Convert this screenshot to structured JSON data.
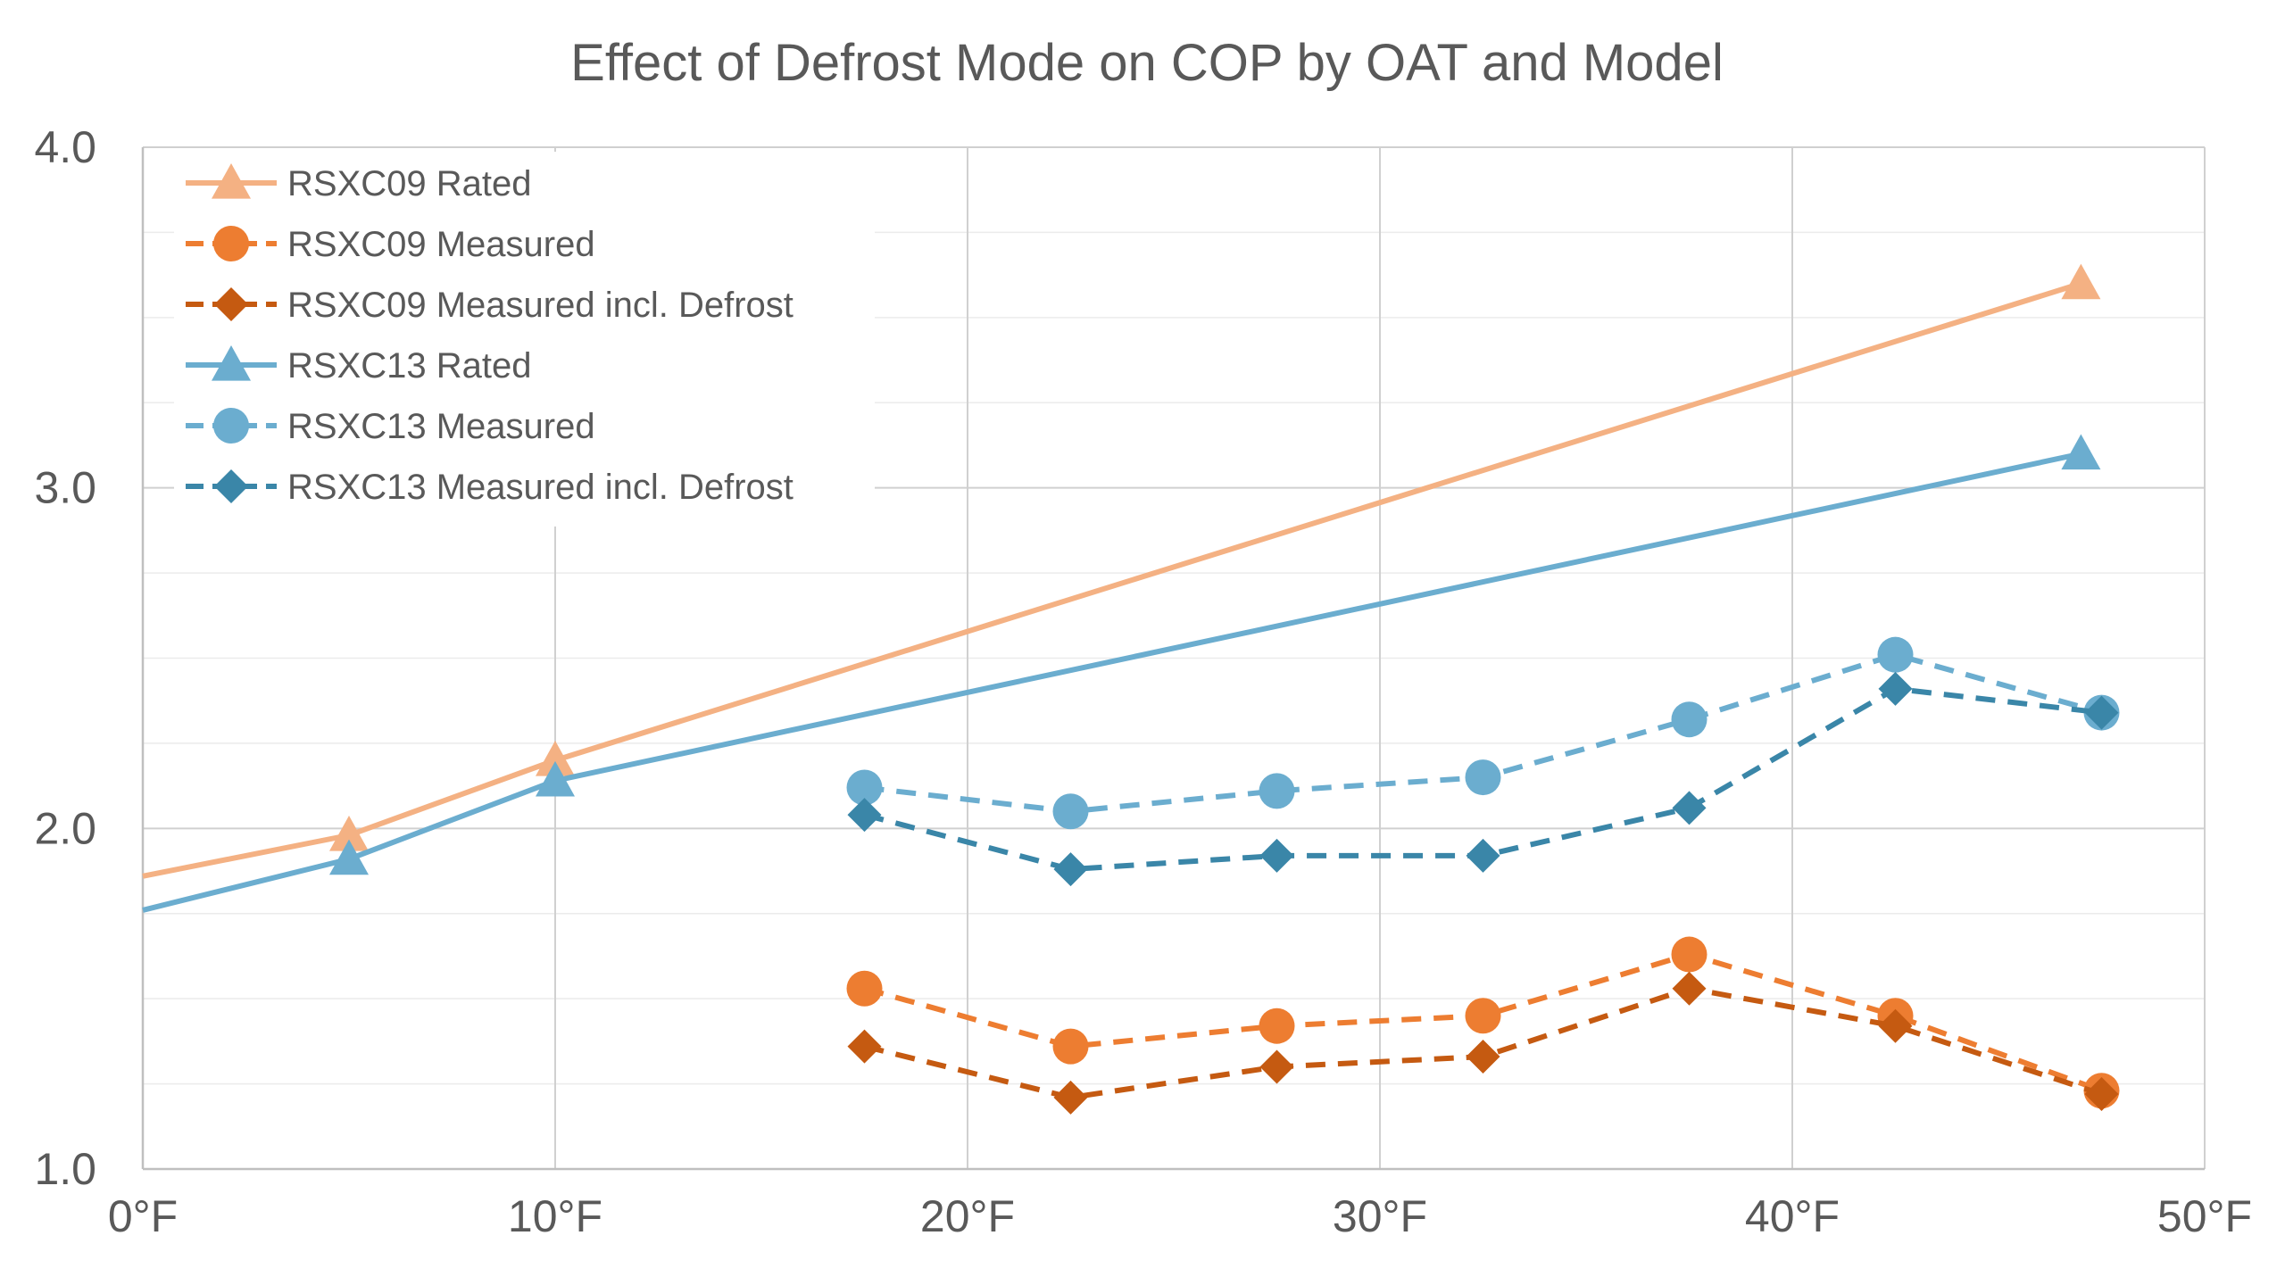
{
  "chart_data": {
    "type": "line",
    "title": "Effect of Defrost Mode on COP by OAT and Model",
    "xlabel": "",
    "ylabel": "",
    "xlim": [
      0,
      50
    ],
    "ylim": [
      1.0,
      4.0
    ],
    "x_ticks": [
      "0°F",
      "10°F",
      "20°F",
      "30°F",
      "40°F",
      "50°F"
    ],
    "y_ticks": [
      "1.0",
      "2.0",
      "3.0",
      "4.0"
    ],
    "grid": true,
    "legend_position": "top-left",
    "series": [
      {
        "name": "RSXC09 Rated",
        "color": "#F4B183",
        "dash": "solid",
        "marker": "triangle",
        "line_points": [
          [
            0,
            1.86
          ],
          [
            5,
            1.98
          ],
          [
            10,
            2.2
          ],
          [
            47,
            3.6
          ]
        ],
        "marker_points": [
          [
            5,
            1.98
          ],
          [
            10,
            2.2
          ],
          [
            47,
            3.6
          ]
        ]
      },
      {
        "name": "RSXC09 Measured",
        "color": "#ED7D31",
        "dash": "dashed",
        "marker": "circle",
        "line_points": [
          [
            17.5,
            1.53
          ],
          [
            22.5,
            1.36
          ],
          [
            27.5,
            1.42
          ],
          [
            32.5,
            1.45
          ],
          [
            37.5,
            1.63
          ],
          [
            42.5,
            1.45
          ],
          [
            47.5,
            1.23
          ]
        ],
        "marker_points": [
          [
            17.5,
            1.53
          ],
          [
            22.5,
            1.36
          ],
          [
            27.5,
            1.42
          ],
          [
            32.5,
            1.45
          ],
          [
            37.5,
            1.63
          ],
          [
            42.5,
            1.45
          ],
          [
            47.5,
            1.23
          ]
        ]
      },
      {
        "name": "RSXC09 Measured incl. Defrost",
        "color": "#C55A11",
        "dash": "dashed",
        "marker": "diamond",
        "line_points": [
          [
            17.5,
            1.36
          ],
          [
            22.5,
            1.21
          ],
          [
            27.5,
            1.3
          ],
          [
            32.5,
            1.33
          ],
          [
            37.5,
            1.53
          ],
          [
            42.5,
            1.42
          ],
          [
            47.5,
            1.22
          ]
        ],
        "marker_points": [
          [
            17.5,
            1.36
          ],
          [
            22.5,
            1.21
          ],
          [
            27.5,
            1.3
          ],
          [
            32.5,
            1.33
          ],
          [
            37.5,
            1.53
          ],
          [
            42.5,
            1.42
          ],
          [
            47.5,
            1.22
          ]
        ]
      },
      {
        "name": "RSXC13 Rated",
        "color": "#6BADCF",
        "dash": "solid",
        "marker": "triangle",
        "line_points": [
          [
            0,
            1.76
          ],
          [
            5,
            1.91
          ],
          [
            10,
            2.14
          ],
          [
            47,
            3.1
          ]
        ],
        "marker_points": [
          [
            5,
            1.91
          ],
          [
            10,
            2.14
          ],
          [
            47,
            3.1
          ]
        ]
      },
      {
        "name": "RSXC13 Measured",
        "color": "#6BADCF",
        "dash": "dashed",
        "marker": "circle",
        "line_points": [
          [
            17.5,
            2.12
          ],
          [
            22.5,
            2.05
          ],
          [
            27.5,
            2.11
          ],
          [
            32.5,
            2.15
          ],
          [
            37.5,
            2.32
          ],
          [
            42.5,
            2.51
          ],
          [
            47.5,
            2.34
          ]
        ],
        "marker_points": [
          [
            17.5,
            2.12
          ],
          [
            22.5,
            2.05
          ],
          [
            27.5,
            2.11
          ],
          [
            32.5,
            2.15
          ],
          [
            37.5,
            2.32
          ],
          [
            42.5,
            2.51
          ],
          [
            47.5,
            2.34
          ]
        ]
      },
      {
        "name": "RSXC13 Measured incl. Defrost",
        "color": "#3A86A8",
        "dash": "dashed",
        "marker": "diamond",
        "line_points": [
          [
            17.5,
            2.04
          ],
          [
            22.5,
            1.88
          ],
          [
            27.5,
            1.92
          ],
          [
            32.5,
            1.92
          ],
          [
            37.5,
            2.06
          ],
          [
            42.5,
            2.41
          ],
          [
            47.5,
            2.34
          ]
        ],
        "marker_points": [
          [
            17.5,
            2.04
          ],
          [
            22.5,
            1.88
          ],
          [
            27.5,
            1.92
          ],
          [
            32.5,
            1.92
          ],
          [
            37.5,
            2.06
          ],
          [
            42.5,
            2.41
          ],
          [
            47.5,
            2.34
          ]
        ]
      }
    ]
  }
}
